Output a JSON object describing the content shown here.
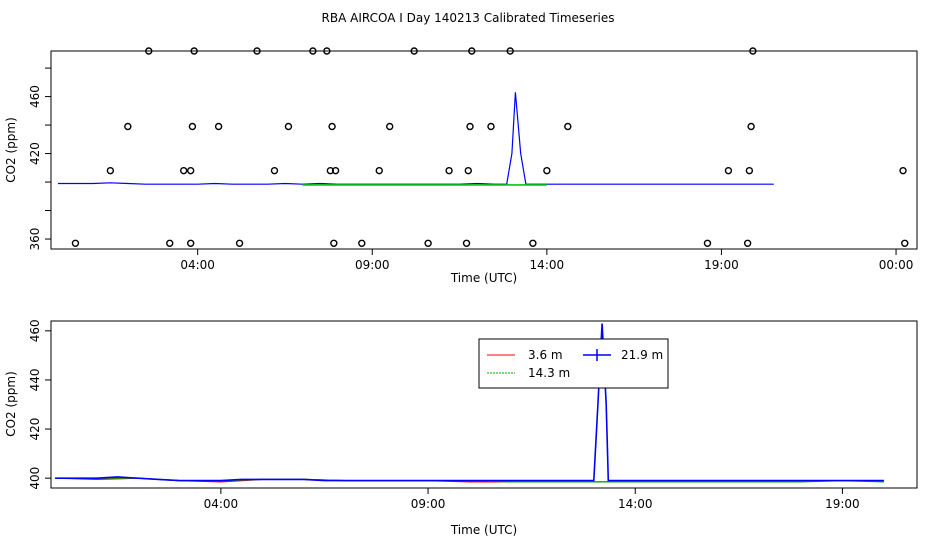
{
  "chart_data": [
    {
      "type": "line",
      "title": "RBA AIRCOA I  Day 140213  Calibrated Timeseries",
      "xlabel": "Time (UTC)",
      "ylabel": "CO2 (ppm)",
      "xlim": [
        -0.2,
        24.6
      ],
      "ylim": [
        353,
        492
      ],
      "x_ticks": [
        4,
        9,
        14,
        19,
        24
      ],
      "x_tick_labels": [
        "04:00",
        "09:00",
        "14:00",
        "19:00",
        "00:00"
      ],
      "y_ticks": [
        360,
        380,
        400,
        420,
        440,
        460,
        480
      ],
      "y_tick_labels": [
        "360",
        "420",
        "460"
      ],
      "y_tick_label_values": [
        360,
        420,
        460
      ],
      "series": [
        {
          "color": "#0000ff",
          "x": [
            0,
            0.5,
            1,
            1.5,
            2,
            2.5,
            3,
            3.5,
            4,
            4.5,
            5,
            5.5,
            6,
            6.5,
            7,
            7.5,
            8,
            8.5,
            9,
            9.5,
            10,
            10.5,
            11,
            11.5,
            12,
            12.5,
            12.85,
            13.0,
            13.1,
            13.25,
            13.4,
            13.5,
            14,
            14.5,
            15,
            15.5,
            16,
            16.5,
            17,
            17.5,
            18,
            18.5,
            19,
            19.5,
            20,
            20.5
          ],
          "y": [
            399,
            399,
            399,
            399.5,
            399,
            398.5,
            398.5,
            398.5,
            398.5,
            399,
            398.5,
            398.5,
            398.5,
            399,
            398.5,
            399,
            398.5,
            398.5,
            398.5,
            398.5,
            398.5,
            398.5,
            398.5,
            398.5,
            399,
            398.5,
            398.5,
            420,
            463,
            420,
            398.5,
            398.5,
            398.5,
            398.5,
            398.5,
            398.5,
            398.5,
            398.5,
            398.5,
            398.5,
            398.5,
            398.5,
            398.5,
            398.5,
            398.5,
            398.5
          ]
        },
        {
          "color": "#00cc00",
          "x": [
            7,
            8,
            9,
            10,
            11,
            12,
            13,
            14
          ],
          "y": [
            398,
            398,
            398,
            398,
            398,
            398,
            398,
            398
          ]
        }
      ],
      "markers": {
        "shape": "open-circle",
        "x": [
          0.5,
          1.5,
          2.0,
          2.6,
          3.2,
          3.6,
          3.8,
          3.8,
          3.85,
          3.9,
          4.6,
          5.2,
          5.7,
          6.2,
          6.6,
          7.3,
          7.7,
          7.8,
          7.85,
          7.9,
          7.95,
          8.7,
          9.2,
          9.5,
          10.2,
          10.6,
          11.2,
          11.7,
          11.75,
          11.8,
          11.85,
          12.4,
          12.95,
          13.6,
          14.0,
          14.6,
          18.6,
          19.2,
          19.75,
          19.8,
          19.85,
          19.9,
          24.2,
          24.25
        ],
        "y": [
          357,
          408,
          439,
          492,
          357,
          408,
          357,
          408,
          439,
          492,
          439,
          357,
          492,
          408,
          439,
          492,
          492,
          408,
          439,
          357,
          408,
          357,
          408,
          439,
          492,
          357,
          408,
          357,
          408,
          439,
          492,
          439,
          492,
          357,
          408,
          439,
          357,
          408,
          357,
          408,
          439,
          492,
          408,
          357
        ]
      }
    },
    {
      "type": "line",
      "xlabel": "Time (UTC)",
      "ylabel": "CO2 (ppm)",
      "xlim": [
        -0.1,
        20.8
      ],
      "ylim": [
        396,
        464
      ],
      "x_ticks": [
        4,
        9,
        14,
        19
      ],
      "x_tick_labels": [
        "04:00",
        "09:00",
        "14:00",
        "19:00"
      ],
      "y_ticks": [
        400,
        420,
        440,
        460
      ],
      "y_tick_labels": [
        "400",
        "420",
        "440",
        "460"
      ],
      "legend": {
        "placement": "top-center",
        "entries": [
          {
            "name": "3.6 m",
            "color": "#ff0000"
          },
          {
            "name": "14.3 m",
            "color": "#00aa00"
          },
          {
            "name": "21.9 m",
            "color": "#0000ff"
          }
        ]
      },
      "series": [
        {
          "name": "3.6 m",
          "color": "#ff0000",
          "x": [
            0,
            1,
            2,
            3,
            4,
            5,
            6,
            7,
            8,
            9,
            10,
            11,
            12,
            13,
            14,
            15,
            16,
            17,
            18,
            19,
            20
          ],
          "y": [
            400,
            399.5,
            400,
            399,
            398.5,
            399.5,
            399.5,
            399,
            399,
            399,
            398.5,
            398.5,
            398.5,
            398.5,
            398.5,
            398.5,
            398.5,
            398.5,
            399,
            399,
            399
          ]
        },
        {
          "name": "14.3 m",
          "color": "#00aa00",
          "x": [
            0,
            1,
            2,
            3,
            4,
            5,
            6,
            7,
            8,
            9,
            10,
            11,
            12,
            13,
            14,
            15,
            16,
            17,
            18,
            19,
            20
          ],
          "y": [
            400,
            400,
            400,
            399,
            399,
            399.5,
            399.5,
            399,
            399,
            399,
            399,
            398.5,
            398.5,
            398.5,
            398.5,
            398.5,
            398.5,
            398.5,
            398.5,
            399,
            398.5
          ]
        },
        {
          "name": "21.9 m",
          "color": "#0000ff",
          "x": [
            0,
            0.5,
            1,
            1.5,
            2,
            2.5,
            3,
            3.5,
            4,
            4.5,
            5,
            5.5,
            6,
            6.5,
            7,
            7.5,
            8,
            8.5,
            9,
            9.5,
            10,
            10.5,
            11,
            11.5,
            12,
            12.5,
            13.0,
            13.1,
            13.2,
            13.3,
            13.35,
            13.45,
            13.6,
            14,
            14.5,
            15,
            15.5,
            16,
            16.5,
            17,
            17.5,
            18,
            18.5,
            19,
            19.5,
            20
          ],
          "y": [
            400,
            400,
            400,
            400.5,
            400,
            399.5,
            399,
            399,
            399,
            399.5,
            399.5,
            399.5,
            399.5,
            399,
            399,
            399,
            399,
            399,
            399,
            399,
            399,
            399,
            399,
            399,
            399,
            399,
            399,
            430,
            463,
            430,
            399,
            399,
            399,
            399,
            399,
            399,
            399,
            399,
            399,
            399,
            399,
            399,
            399,
            399,
            399,
            399
          ]
        }
      ]
    }
  ]
}
